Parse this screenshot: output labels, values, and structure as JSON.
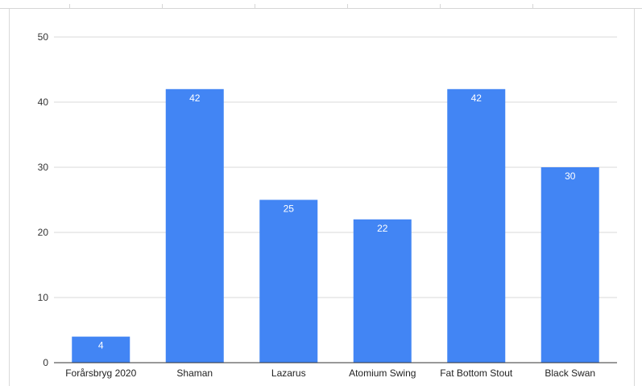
{
  "chart_data": {
    "type": "bar",
    "categories": [
      "Forårsbryg 2020",
      "Shaman",
      "Lazarus",
      "Atomium Swing",
      "Fat Bottom Stout",
      "Black Swan"
    ],
    "values": [
      4,
      42,
      25,
      22,
      42,
      30
    ],
    "data_labels": [
      "4",
      "42",
      "25",
      "22",
      "42",
      "30"
    ],
    "title": "",
    "xlabel": "",
    "ylabel": "",
    "ylim": [
      0,
      50
    ],
    "yticks": [
      "0",
      "10",
      "20",
      "30",
      "40",
      "50"
    ],
    "grid": true,
    "legend": "none",
    "bar_color": "#4285f4",
    "grid_color": "#d9d9d9",
    "axis_color": "#333333"
  }
}
